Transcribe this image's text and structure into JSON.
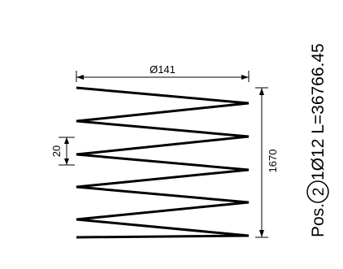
{
  "drawing": {
    "diameter_label": "Ø141",
    "pitch_label": "20",
    "length_label": "1670",
    "position": {
      "prefix": "Pos.",
      "number": "2",
      "spec": "1Ø12 L=36766.45"
    },
    "spiral_turns": 6,
    "line_color": "#000000"
  }
}
